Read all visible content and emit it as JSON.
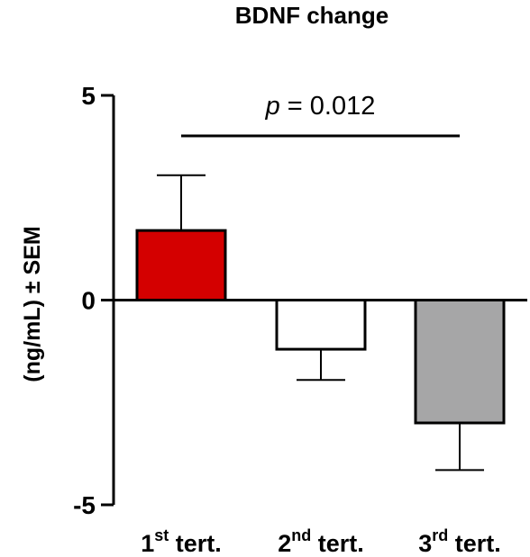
{
  "chart_data": {
    "type": "bar",
    "title": "BDNF change",
    "ylabel": "(ng/mL) ± SEM",
    "xlabel": "",
    "ylim": [
      -5,
      5
    ],
    "yticks": [
      "5",
      "0",
      "-5"
    ],
    "categories": [
      {
        "main": "1",
        "sup": "st",
        "suffix": " tert."
      },
      {
        "main": "2",
        "sup": "nd",
        "suffix": " tert."
      },
      {
        "main": "3",
        "sup": "rd",
        "suffix": " tert."
      }
    ],
    "values": [
      1.7,
      -1.2,
      -3.0
    ],
    "errors": [
      1.35,
      0.75,
      1.15
    ],
    "colors": [
      "#d40000",
      "#ffffff",
      "#a6a6a7"
    ],
    "annotation": {
      "p_symbol": "p",
      "p_text": " = 0.012",
      "from_category": 0,
      "to_category": 2
    }
  }
}
